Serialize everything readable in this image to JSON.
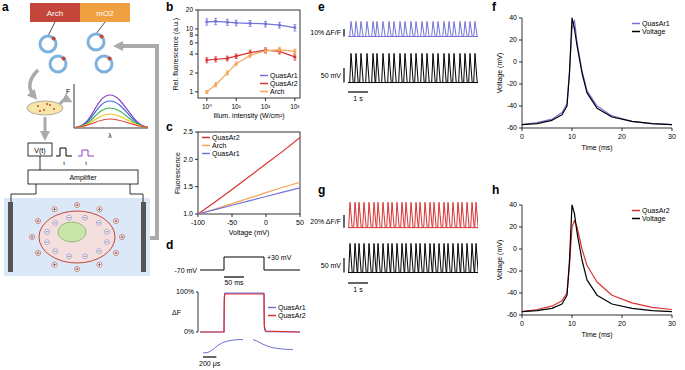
{
  "diagram": {
    "title": "a",
    "construct": [
      "Arch",
      "mO2"
    ],
    "voltage_label": "V(t)",
    "amplifier_label": "Amplifier",
    "spectrum_axes": [
      "F",
      "λ"
    ],
    "pulse_labels": [
      "t",
      "t"
    ]
  },
  "chart_data": [
    {
      "title": "b",
      "type": "line",
      "log": true,
      "x_label": "Illum. intensity (W/cm²)",
      "y_label": "Rel. fluorescence (a.u.)",
      "x": [
        1,
        2,
        5,
        10,
        30,
        100,
        300,
        1000
      ],
      "xlim": [
        0.5,
        1500
      ],
      "xticks": [
        {
          "value": 1,
          "label": "10⁰"
        },
        {
          "value": 10,
          "label": "10¹"
        },
        {
          "value": 100,
          "label": "10²"
        },
        {
          "value": 1000,
          "label": "10³"
        }
      ],
      "ylim": [
        0.8,
        20
      ],
      "yticks": [
        1,
        2,
        4,
        6,
        8,
        10,
        20
      ],
      "legend": "lower right",
      "marker": "circle",
      "series": [
        {
          "name": "QuasAr1",
          "color": "#7373d9",
          "values": [
            13,
            13.2,
            12.8,
            12.5,
            12.3,
            12,
            11.5,
            10.5
          ],
          "errors": [
            1.5,
            1.5,
            1.4,
            1.3,
            1.3,
            1.2,
            1.2,
            1.2
          ]
        },
        {
          "name": "QuasAr2",
          "color": "#d93232",
          "values": [
            3.2,
            3.3,
            3.4,
            3.7,
            4.2,
            4.6,
            4.4,
            3.6
          ],
          "errors": [
            0.3,
            0.3,
            0.3,
            0.3,
            0.4,
            0.4,
            0.4,
            0.4
          ]
        },
        {
          "name": "Arch",
          "color": "#f2a65a",
          "values": [
            1.0,
            1.3,
            2.0,
            2.8,
            3.8,
            4.5,
            4.7,
            4.4
          ],
          "errors": [
            0.05,
            0.1,
            0.15,
            0.2,
            0.3,
            0.4,
            0.4,
            0.4
          ]
        }
      ]
    },
    {
      "title": "c",
      "type": "line",
      "x_label": "Voltage (mV)",
      "y_label": "Fluorescence",
      "x": [
        -100,
        -75,
        -50,
        -25,
        0,
        25,
        50
      ],
      "xlim": [
        -100,
        50
      ],
      "xticks": [
        -100,
        -50,
        0,
        50
      ],
      "ylim": [
        1,
        2.5
      ],
      "yticks": [
        {
          "value": 1,
          "label": "1.0"
        },
        1.5,
        {
          "value": 2,
          "label": "2.0"
        },
        2.5
      ],
      "legend": "upper left",
      "series": [
        {
          "name": "QuasAr2",
          "color": "#d93232",
          "values": [
            1.0,
            1.22,
            1.45,
            1.68,
            1.92,
            2.15,
            2.4
          ]
        },
        {
          "name": "Arch",
          "color": "#f2a65a",
          "values": [
            1.0,
            1.09,
            1.19,
            1.29,
            1.39,
            1.49,
            1.58
          ]
        },
        {
          "name": "QuasAr1",
          "color": "#7373d9",
          "values": [
            1.0,
            1.08,
            1.16,
            1.24,
            1.32,
            1.4,
            1.48
          ]
        }
      ]
    },
    {
      "title": "d",
      "type": "line",
      "y_label": "ΔF",
      "tick_labels": "y",
      "x": [
        0,
        60,
        60.5,
        61,
        62,
        160,
        160.5,
        161,
        163,
        165,
        250
      ],
      "xlim": [
        0,
        250
      ],
      "ylim": [
        0,
        100
      ],
      "yticks": [
        {
          "value": 0,
          "label": "0%"
        },
        {
          "value": 100,
          "label": "100%"
        }
      ],
      "legend": "right",
      "series": [
        {
          "name": "QuasAr1",
          "color": "#7373d9",
          "values": [
            0,
            0,
            70,
            90,
            97,
            97,
            30,
            12,
            3,
            1,
            0
          ]
        },
        {
          "name": "QuasAr2",
          "color": "#d93232",
          "values": [
            0,
            0,
            55,
            85,
            95,
            95,
            40,
            15,
            4,
            2,
            0
          ]
        }
      ],
      "protocol": {
        "x": [
          0,
          60,
          60,
          160,
          160,
          250
        ],
        "values": [
          -70,
          -70,
          30,
          30,
          -70,
          -70
        ],
        "labels": [
          "-70 mV",
          "+30 mV"
        ]
      },
      "scale_bar": {
        "value": 50,
        "label": "50 ms"
      },
      "inset_xlim": [
        0,
        600
      ],
      "insets": [
        {
          "color": "#7373d9",
          "x": [
            0,
            75,
            150,
            225,
            300,
            375,
            450,
            525,
            600
          ],
          "values": [
            0,
            4,
            25,
            55,
            75,
            86,
            92,
            95,
            96
          ]
        },
        {
          "color": "#7373d9",
          "x": [
            0,
            75,
            150,
            225,
            300,
            375,
            450,
            525,
            600
          ],
          "values": [
            96,
            82,
            62,
            48,
            38,
            32,
            28,
            26,
            25
          ]
        }
      ],
      "inset_scale_bar": {
        "value": 200,
        "label": "200 μs"
      }
    },
    {
      "title": "e",
      "type": "spike_train",
      "tick_labels": false,
      "xlim": [
        0,
        6.5
      ],
      "series": [
        {
          "color": "#7373d9",
          "baseline": 0,
          "amplitude": 20,
          "ylim": [
            -10,
            30
          ],
          "spike_times": [
            0.15,
            0.4,
            0.65,
            0.95,
            1.25,
            1.45,
            1.75,
            2.05,
            2.3,
            2.6,
            2.85,
            3.15,
            3.4,
            3.7,
            3.95,
            4.25,
            4.5,
            4.8,
            5.05,
            5.3,
            5.6,
            5.85,
            6.1,
            6.35
          ]
        },
        {
          "color": "#000000",
          "baseline": -60,
          "amplitude": 100,
          "ylim": [
            -65,
            45
          ],
          "spike_times": [
            0.15,
            0.4,
            0.65,
            0.95,
            1.25,
            1.45,
            1.75,
            2.05,
            2.3,
            2.6,
            2.85,
            3.15,
            3.4,
            3.7,
            3.95,
            4.25,
            4.5,
            4.8,
            5.05,
            5.3,
            5.6,
            5.85,
            6.1,
            6.35
          ]
        }
      ],
      "scale_bars": [
        {
          "value": 10,
          "label": "10% ΔF/F"
        },
        {
          "value": 50,
          "label": "50 mV"
        },
        {
          "value": 1,
          "label": "1 s"
        }
      ]
    },
    {
      "title": "f",
      "type": "line",
      "x_label": "Time (ms)",
      "y_label": "Voltage (mV)",
      "x": [
        0,
        3,
        6,
        8,
        9,
        9.5,
        10,
        10.5,
        11,
        12,
        13,
        15,
        18,
        22,
        26,
        30
      ],
      "xlim": [
        0,
        30
      ],
      "xticks": [
        0,
        10,
        20,
        30
      ],
      "ylim": [
        -60,
        40
      ],
      "yticks": [
        -60,
        -40,
        -20,
        0,
        20,
        40
      ],
      "legend": "upper right",
      "series": [
        {
          "name": "QuasAr1",
          "color": "#7373d9",
          "values": [
            -57,
            -55,
            -52,
            -46,
            -38,
            -8,
            30,
            38,
            18,
            -8,
            -26,
            -40,
            -49,
            -54,
            -56,
            -57
          ]
        },
        {
          "name": "Voltage",
          "color": "#000000",
          "values": [
            -57,
            -56,
            -53,
            -48,
            -40,
            -10,
            40,
            30,
            15,
            -10,
            -28,
            -42,
            -50,
            -54,
            -56,
            -57
          ]
        }
      ]
    },
    {
      "title": "g",
      "type": "spike_train",
      "tick_labels": false,
      "xlim": [
        0,
        6.5
      ],
      "series": [
        {
          "color": "#d93232",
          "baseline": 0,
          "amplitude": 40,
          "ylim": [
            -10,
            50
          ],
          "spike_times": [
            0.1,
            0.35,
            0.55,
            0.8,
            1.05,
            1.3,
            1.5,
            1.75,
            2.0,
            2.2,
            2.45,
            2.7,
            2.9,
            3.15,
            3.4,
            3.6,
            3.85,
            4.1,
            4.3,
            4.55,
            4.8,
            5.0,
            5.25,
            5.5,
            5.7,
            5.95,
            6.2,
            6.4
          ]
        },
        {
          "color": "#000000",
          "baseline": -60,
          "amplitude": 100,
          "ylim": [
            -65,
            45
          ],
          "spike_times": [
            0.1,
            0.35,
            0.55,
            0.8,
            1.05,
            1.3,
            1.5,
            1.75,
            2.0,
            2.2,
            2.45,
            2.7,
            2.9,
            3.15,
            3.4,
            3.6,
            3.85,
            4.1,
            4.3,
            4.55,
            4.8,
            5.0,
            5.25,
            5.5,
            5.7,
            5.95,
            6.2,
            6.4
          ]
        }
      ],
      "scale_bars": [
        {
          "value": 20,
          "label": "20% ΔF/F"
        },
        {
          "value": 50,
          "label": "50 mV"
        },
        {
          "value": 1,
          "label": "1 s"
        }
      ]
    },
    {
      "title": "h",
      "type": "line",
      "x_label": "Time (ms)",
      "y_label": "Voltage (mV)",
      "x": [
        0,
        3,
        6,
        8,
        9,
        9.5,
        10,
        10.5,
        11,
        12,
        13,
        15,
        18,
        22,
        26,
        30
      ],
      "xlim": [
        0,
        30
      ],
      "xticks": [
        0,
        10,
        20,
        30
      ],
      "ylim": [
        -60,
        40
      ],
      "yticks": [
        -60,
        -40,
        -20,
        0,
        20,
        40
      ],
      "legend": "upper right",
      "series": [
        {
          "name": "QuasAr2",
          "color": "#d93232",
          "values": [
            -57,
            -55,
            -52,
            -47,
            -40,
            -15,
            20,
            26,
            20,
            0,
            -15,
            -30,
            -42,
            -49,
            -53,
            -55
          ]
        },
        {
          "name": "Voltage",
          "color": "#000000",
          "values": [
            -57,
            -56,
            -54,
            -50,
            -42,
            -10,
            40,
            32,
            15,
            -10,
            -28,
            -42,
            -50,
            -54,
            -56,
            -57
          ]
        }
      ]
    }
  ]
}
